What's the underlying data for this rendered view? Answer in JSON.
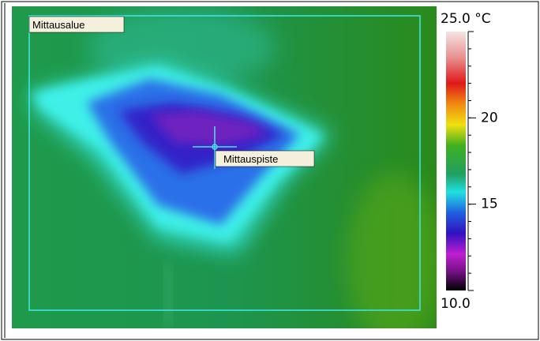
{
  "image": {
    "area_label": "Mittausalue",
    "point_label": "Mittauspiste"
  },
  "scale": {
    "min": 10,
    "max": 25,
    "min_label": "10.0",
    "max_label": "25.0 °C",
    "ticks": [
      20,
      15
    ]
  }
}
